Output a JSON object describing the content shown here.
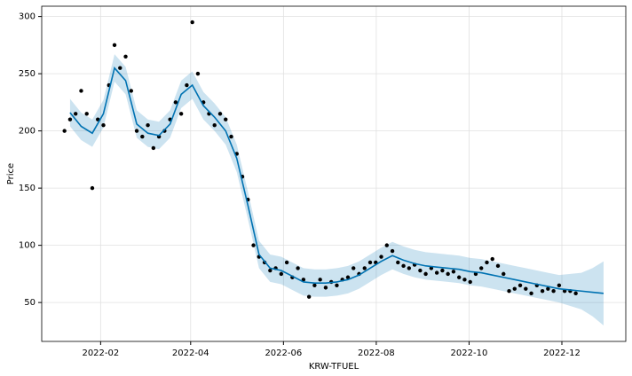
{
  "chart_data": {
    "type": "forecast",
    "xlabel": "KRW-TFUEL",
    "ylabel": "Price",
    "xlim": [
      2021.979,
      2023.03
    ],
    "ylim": [
      16,
      309
    ],
    "xticks": [
      {
        "value": 2022.085,
        "label": "2022-02"
      },
      {
        "value": 2022.247,
        "label": "2022-04"
      },
      {
        "value": 2022.414,
        "label": "2022-06"
      },
      {
        "value": 2022.581,
        "label": "2022-08"
      },
      {
        "value": 2022.748,
        "label": "2022-10"
      },
      {
        "value": 2022.915,
        "label": "2022-12"
      }
    ],
    "yticks": [
      50,
      100,
      150,
      200,
      250,
      300
    ],
    "grid": true,
    "observed": {
      "color": "#000000",
      "x": [
        2022.02,
        2022.03,
        2022.04,
        2022.05,
        2022.06,
        2022.07,
        2022.08,
        2022.09,
        2022.1,
        2022.11,
        2022.12,
        2022.13,
        2022.14,
        2022.15,
        2022.16,
        2022.17,
        2022.18,
        2022.19,
        2022.2,
        2022.21,
        2022.22,
        2022.23,
        2022.24,
        2022.25,
        2022.26,
        2022.27,
        2022.28,
        2022.29,
        2022.3,
        2022.31,
        2022.32,
        2022.33,
        2022.34,
        2022.35,
        2022.36,
        2022.37,
        2022.38,
        2022.39,
        2022.4,
        2022.41,
        2022.42,
        2022.43,
        2022.44,
        2022.45,
        2022.46,
        2022.47,
        2022.48,
        2022.49,
        2022.5,
        2022.51,
        2022.52,
        2022.53,
        2022.54,
        2022.55,
        2022.56,
        2022.57,
        2022.58,
        2022.59,
        2022.6,
        2022.61,
        2022.62,
        2022.63,
        2022.64,
        2022.65,
        2022.66,
        2022.67,
        2022.68,
        2022.69,
        2022.7,
        2022.71,
        2022.72,
        2022.73,
        2022.74,
        2022.75,
        2022.76,
        2022.77,
        2022.78,
        2022.79,
        2022.8,
        2022.81,
        2022.82,
        2022.83,
        2022.84,
        2022.85,
        2022.86,
        2022.87,
        2022.88,
        2022.89,
        2022.9,
        2022.91,
        2022.92,
        2022.93,
        2022.94
      ],
      "values": [
        200,
        210,
        215,
        235,
        215,
        150,
        210,
        205,
        240,
        275,
        255,
        265,
        235,
        200,
        195,
        205,
        185,
        195,
        200,
        210,
        225,
        215,
        240,
        295,
        250,
        225,
        215,
        205,
        215,
        210,
        195,
        180,
        160,
        140,
        100,
        90,
        85,
        78,
        80,
        75,
        85,
        72,
        80,
        70,
        55,
        65,
        70,
        63,
        68,
        65,
        70,
        72,
        80,
        75,
        80,
        85,
        85,
        90,
        100,
        95,
        85,
        82,
        80,
        83,
        78,
        75,
        80,
        76,
        78,
        75,
        77,
        72,
        70,
        68,
        75,
        80,
        85,
        88,
        82,
        75,
        60,
        62,
        65,
        62,
        58,
        65,
        60,
        62,
        60,
        65,
        60,
        60,
        58
      ]
    },
    "forecast": {
      "color": "#0072B2",
      "band_color": "#0072B2",
      "x": [
        2022.03,
        2022.05,
        2022.07,
        2022.09,
        2022.11,
        2022.13,
        2022.15,
        2022.17,
        2022.19,
        2022.21,
        2022.23,
        2022.25,
        2022.27,
        2022.29,
        2022.31,
        2022.33,
        2022.35,
        2022.37,
        2022.39,
        2022.41,
        2022.43,
        2022.45,
        2022.47,
        2022.49,
        2022.51,
        2022.53,
        2022.55,
        2022.57,
        2022.59,
        2022.61,
        2022.63,
        2022.65,
        2022.67,
        2022.69,
        2022.71,
        2022.73,
        2022.75,
        2022.77,
        2022.79,
        2022.81,
        2022.83,
        2022.85,
        2022.87,
        2022.89,
        2022.91,
        2022.93,
        2022.95,
        2022.97,
        2022.99
      ],
      "values": [
        216,
        204,
        198,
        215,
        255,
        244,
        206,
        198,
        196,
        206,
        232,
        240,
        222,
        212,
        200,
        176,
        135,
        92,
        80,
        78,
        73,
        68,
        67,
        67,
        68,
        70,
        74,
        80,
        86,
        91,
        87,
        84,
        82,
        81,
        80,
        79,
        77,
        76,
        74,
        72,
        70,
        68,
        66,
        64,
        62,
        61,
        60,
        59,
        58
      ],
      "lower": [
        204,
        192,
        186,
        203,
        243,
        232,
        194,
        186,
        184,
        194,
        220,
        228,
        210,
        200,
        188,
        164,
        123,
        80,
        68,
        66,
        61,
        56,
        55,
        55,
        56,
        58,
        62,
        68,
        74,
        79,
        75,
        72,
        70,
        69,
        68,
        67,
        65,
        64,
        62,
        60,
        58,
        56,
        54,
        52,
        50,
        47,
        44,
        38,
        30
      ],
      "upper": [
        228,
        216,
        210,
        227,
        267,
        256,
        218,
        210,
        208,
        218,
        244,
        252,
        234,
        224,
        212,
        188,
        147,
        104,
        92,
        90,
        85,
        80,
        79,
        79,
        80,
        82,
        86,
        92,
        98,
        103,
        99,
        96,
        94,
        93,
        92,
        91,
        89,
        88,
        86,
        84,
        82,
        80,
        78,
        76,
        74,
        75,
        76,
        80,
        86
      ]
    }
  }
}
